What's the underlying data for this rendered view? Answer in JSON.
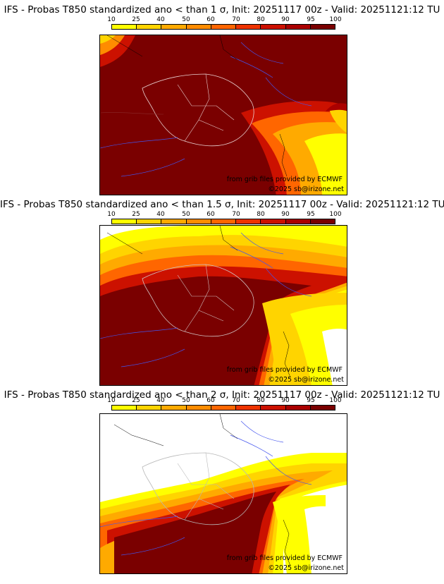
{
  "panels": [
    {
      "title": "IFS - Probas T850  standardized ano < than 1 σ, Init: 20251117 00z - Valid: 20251121:12 TU"
    },
    {
      "title": "IFS - Probas T850  standardized ano < than 1.5 σ, Init: 20251117 00z - Valid: 20251121:12 TU"
    },
    {
      "title": "IFS - Probas T850  standardized ano < than 2 σ, Init: 20251117 00z - Valid: 20251121:12 TU"
    }
  ],
  "colorbar": {
    "ticks": [
      "10",
      "25",
      "40",
      "50",
      "60",
      "70",
      "80",
      "90",
      "95",
      "100"
    ],
    "colors": [
      "#ffff00",
      "#ffd400",
      "#ffaa00",
      "#ff8c00",
      "#ff6600",
      "#ee3300",
      "#cc1100",
      "#aa0000",
      "#7a0000"
    ]
  },
  "credits": {
    "source": "from grib files provided by ECMWF",
    "copyright": "©2025 sb@irizone.net"
  }
}
